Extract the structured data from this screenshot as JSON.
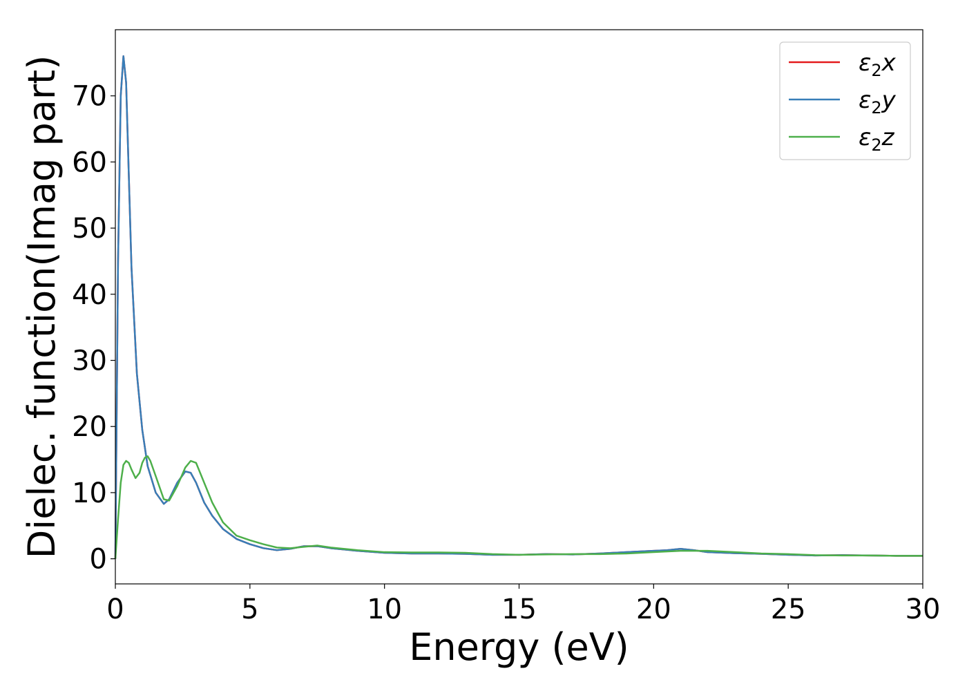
{
  "chart_data": {
    "type": "line",
    "xlabel": "Energy (eV)",
    "ylabel": "Dielec. function(Imag part)",
    "xlim": [
      0,
      30
    ],
    "ylim": [
      -3.8,
      80
    ],
    "xticks": [
      0,
      5,
      10,
      15,
      20,
      25,
      30
    ],
    "yticks": [
      0,
      10,
      20,
      30,
      40,
      50,
      60,
      70
    ],
    "grid": false,
    "legend_position": "top-right",
    "series": [
      {
        "name": "ε2x",
        "legend_main": "ε",
        "legend_sub": "2",
        "legend_tail": "x",
        "color": "#e41a1c",
        "x": [
          0,
          0.1,
          0.2,
          0.3,
          0.4,
          0.5,
          0.6,
          0.8,
          1.0,
          1.2,
          1.5,
          1.8,
          2.0,
          2.3,
          2.6,
          2.8,
          3.0,
          3.3,
          3.6,
          4.0,
          4.5,
          5.0,
          5.5,
          6.0,
          6.5,
          7.0,
          7.5,
          8.0,
          9.0,
          10.0,
          11.0,
          12.0,
          13.0,
          14.0,
          15.0,
          16.0,
          17.0,
          18.0,
          19.0,
          20.0,
          20.5,
          21.0,
          21.5,
          22.0,
          23.0,
          24.0,
          25.0,
          26.0,
          27.0,
          28.0,
          29.0,
          30.0
        ],
        "values": [
          0,
          45,
          70,
          76,
          72,
          58,
          44,
          28,
          19.5,
          14,
          10,
          8.3,
          9,
          11.5,
          13.2,
          13,
          11.5,
          8.5,
          6.5,
          4.5,
          3,
          2.2,
          1.6,
          1.3,
          1.5,
          1.9,
          1.9,
          1.6,
          1.2,
          0.9,
          0.8,
          0.8,
          0.75,
          0.6,
          0.6,
          0.7,
          0.65,
          0.8,
          1.0,
          1.2,
          1.3,
          1.5,
          1.3,
          1.0,
          0.85,
          0.75,
          0.6,
          0.5,
          0.55,
          0.5,
          0.45,
          0.45
        ]
      },
      {
        "name": "ε2y",
        "legend_main": "ε",
        "legend_sub": "2",
        "legend_tail": "y",
        "color": "#377eb8",
        "x": [
          0,
          0.1,
          0.2,
          0.3,
          0.4,
          0.5,
          0.6,
          0.8,
          1.0,
          1.2,
          1.5,
          1.8,
          2.0,
          2.3,
          2.6,
          2.8,
          3.0,
          3.3,
          3.6,
          4.0,
          4.5,
          5.0,
          5.5,
          6.0,
          6.5,
          7.0,
          7.5,
          8.0,
          9.0,
          10.0,
          11.0,
          12.0,
          13.0,
          14.0,
          15.0,
          16.0,
          17.0,
          18.0,
          19.0,
          20.0,
          20.5,
          21.0,
          21.5,
          22.0,
          23.0,
          24.0,
          25.0,
          26.0,
          27.0,
          28.0,
          29.0,
          30.0
        ],
        "values": [
          0,
          45,
          70,
          76,
          72,
          58,
          44,
          28,
          19.5,
          14,
          10,
          8.3,
          9,
          11.5,
          13.2,
          13,
          11.5,
          8.5,
          6.5,
          4.5,
          3,
          2.2,
          1.6,
          1.3,
          1.5,
          1.9,
          1.9,
          1.6,
          1.2,
          0.9,
          0.8,
          0.8,
          0.75,
          0.6,
          0.6,
          0.7,
          0.65,
          0.8,
          1.0,
          1.2,
          1.3,
          1.5,
          1.3,
          1.0,
          0.85,
          0.75,
          0.6,
          0.5,
          0.55,
          0.5,
          0.45,
          0.45
        ]
      },
      {
        "name": "ε2z",
        "legend_main": "ε",
        "legend_sub": "2",
        "legend_tail": "z",
        "color": "#4daf4a",
        "x": [
          0,
          0.1,
          0.2,
          0.3,
          0.4,
          0.5,
          0.6,
          0.75,
          0.9,
          1.0,
          1.1,
          1.2,
          1.3,
          1.5,
          1.8,
          2.0,
          2.3,
          2.6,
          2.8,
          3.0,
          3.3,
          3.6,
          4.0,
          4.5,
          5.0,
          5.5,
          6.0,
          6.5,
          7.0,
          7.5,
          8.0,
          9.0,
          10.0,
          11.0,
          12.0,
          13.0,
          14.0,
          15.0,
          16.0,
          17.0,
          18.0,
          19.0,
          20.0,
          21.0,
          22.0,
          23.0,
          24.0,
          25.0,
          26.0,
          27.0,
          28.0,
          29.0,
          30.0
        ],
        "values": [
          0,
          6,
          11.5,
          14.2,
          14.8,
          14.5,
          13.5,
          12.2,
          13,
          14.5,
          15.3,
          15.5,
          14.8,
          12.5,
          9,
          8.8,
          11,
          13.8,
          14.8,
          14.5,
          11.5,
          8.5,
          5.5,
          3.5,
          2.8,
          2.2,
          1.7,
          1.6,
          1.8,
          2.0,
          1.7,
          1.3,
          1.0,
          0.95,
          0.95,
          0.9,
          0.7,
          0.6,
          0.65,
          0.7,
          0.7,
          0.8,
          1.0,
          1.2,
          1.2,
          1.0,
          0.8,
          0.7,
          0.55,
          0.5,
          0.5,
          0.45,
          0.45
        ]
      }
    ]
  }
}
